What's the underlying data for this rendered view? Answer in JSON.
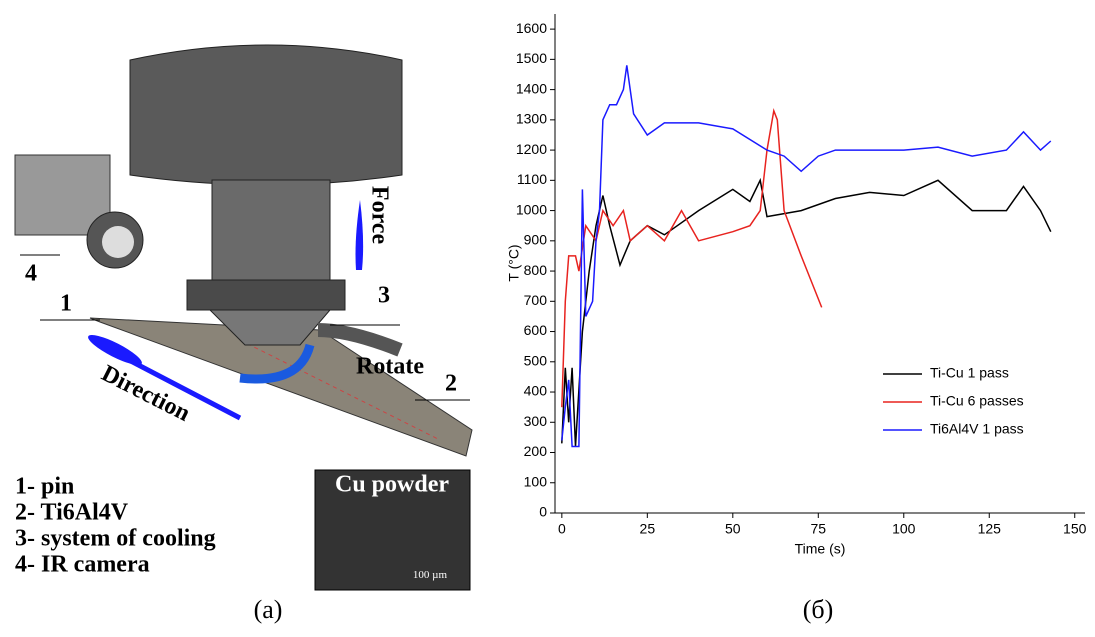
{
  "figure": {
    "diagram": {
      "force": "Force",
      "rotate": "Rotate",
      "direction": "Direction",
      "markers": [
        "1",
        "2",
        "3",
        "4"
      ],
      "legend": [
        "1- pin",
        "2- Ti6Al4V",
        "3- system of cooling",
        "4- IR camera"
      ],
      "inset": "Cu powder",
      "scale": "100 µm"
    },
    "captions": [
      "(a)",
      "(б)"
    ]
  },
  "chart_data": {
    "type": "line",
    "x_label": "Time (s)",
    "y_label": "T (°C)",
    "xlim": [
      -2,
      153
    ],
    "ylim": [
      0,
      1650
    ],
    "xticks": [
      0,
      25,
      50,
      75,
      100,
      125,
      150
    ],
    "yticks": [
      0,
      100,
      200,
      300,
      400,
      500,
      600,
      700,
      800,
      900,
      1000,
      1100,
      1200,
      1300,
      1400,
      1500,
      1600
    ],
    "legend_position": "lower right",
    "series": [
      {
        "name": "Ti-Cu 1 pass",
        "color": "#000000",
        "x": [
          0,
          1,
          2,
          3,
          4,
          6,
          8,
          10,
          12,
          14,
          17,
          20,
          25,
          30,
          40,
          50,
          55,
          58,
          60,
          70,
          80,
          90,
          100,
          110,
          120,
          130,
          135,
          140,
          143
        ],
        "values": [
          230,
          480,
          300,
          480,
          220,
          600,
          800,
          950,
          1050,
          950,
          820,
          900,
          950,
          920,
          1000,
          1070,
          1030,
          1100,
          980,
          1000,
          1040,
          1060,
          1050,
          1100,
          1000,
          1000,
          1080,
          1000,
          930
        ]
      },
      {
        "name": "Ti-Cu 6 passes",
        "color": "#e8231f",
        "x": [
          0,
          1,
          2,
          4,
          5,
          7,
          10,
          12,
          15,
          18,
          20,
          25,
          30,
          35,
          40,
          50,
          55,
          58,
          60,
          62,
          63,
          65,
          70,
          76
        ],
        "values": [
          350,
          700,
          850,
          850,
          800,
          950,
          900,
          1000,
          950,
          1000,
          900,
          950,
          900,
          1000,
          900,
          930,
          950,
          1000,
          1200,
          1330,
          1300,
          1000,
          850,
          680
        ]
      },
      {
        "name": "Ti6Al4V 1 pass",
        "color": "#1a1aff",
        "x": [
          0,
          1,
          2,
          3,
          5,
          6,
          7,
          9,
          10,
          11,
          12,
          14,
          16,
          18,
          19,
          21,
          25,
          30,
          40,
          50,
          60,
          65,
          70,
          75,
          80,
          90,
          100,
          110,
          120,
          130,
          135,
          140,
          143
        ],
        "values": [
          240,
          350,
          440,
          220,
          220,
          1070,
          650,
          700,
          900,
          1000,
          1300,
          1350,
          1350,
          1400,
          1480,
          1320,
          1250,
          1290,
          1290,
          1270,
          1200,
          1180,
          1130,
          1180,
          1200,
          1200,
          1200,
          1210,
          1180,
          1200,
          1260,
          1200,
          1230
        ]
      }
    ]
  }
}
